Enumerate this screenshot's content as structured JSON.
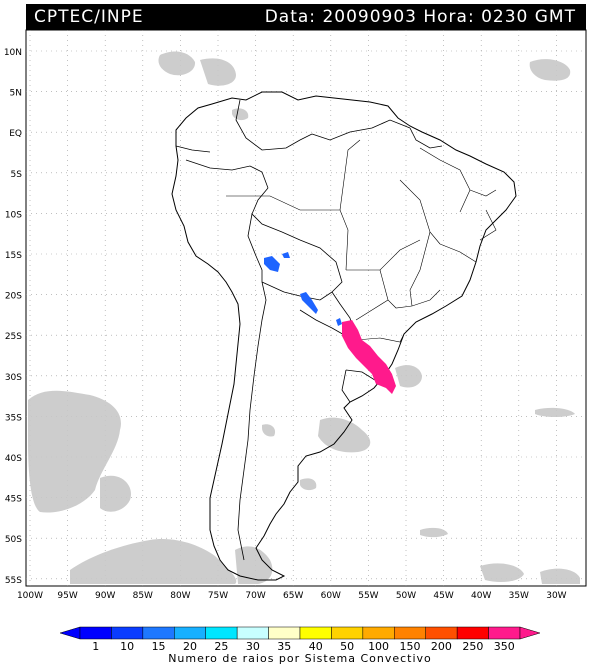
{
  "header": {
    "source": "CPTEC/INPE",
    "datetime": "Data: 20090903 Hora: 0230 GMT"
  },
  "map": {
    "lat_labels": [
      "10N",
      "5N",
      "EQ",
      "5S",
      "10S",
      "15S",
      "20S",
      "25S",
      "30S",
      "35S",
      "40S",
      "45S",
      "50S",
      "55S"
    ],
    "lon_labels": [
      "100W",
      "95W",
      "90W",
      "85W",
      "80W",
      "75W",
      "70W",
      "65W",
      "60W",
      "55W",
      "50W",
      "45W",
      "40W",
      "35W",
      "30W"
    ]
  },
  "legend": {
    "caption": "Numero de raios por Sistema Convectivo",
    "ticks": [
      "1",
      "10",
      "15",
      "20",
      "25",
      "30",
      "35",
      "40",
      "50",
      "100",
      "150",
      "200",
      "250",
      "350"
    ],
    "colors": [
      "#0000ff",
      "#0a3cff",
      "#1e78ff",
      "#17b0ff",
      "#00e6ff",
      "#c8ffff",
      "#ffffc8",
      "#ffff00",
      "#ffd200",
      "#ffaa00",
      "#ff8200",
      "#ff5000",
      "#ff0000",
      "#ff1a8c",
      "#ff1a8c"
    ],
    "arrow_left_color": "#0000ff",
    "arrow_right_color": "#ff1a8c"
  },
  "colors": {
    "lightning_high": "#ff1a8c",
    "lightning_low": "#1e64ff",
    "cloud": "#c8c8c8"
  }
}
